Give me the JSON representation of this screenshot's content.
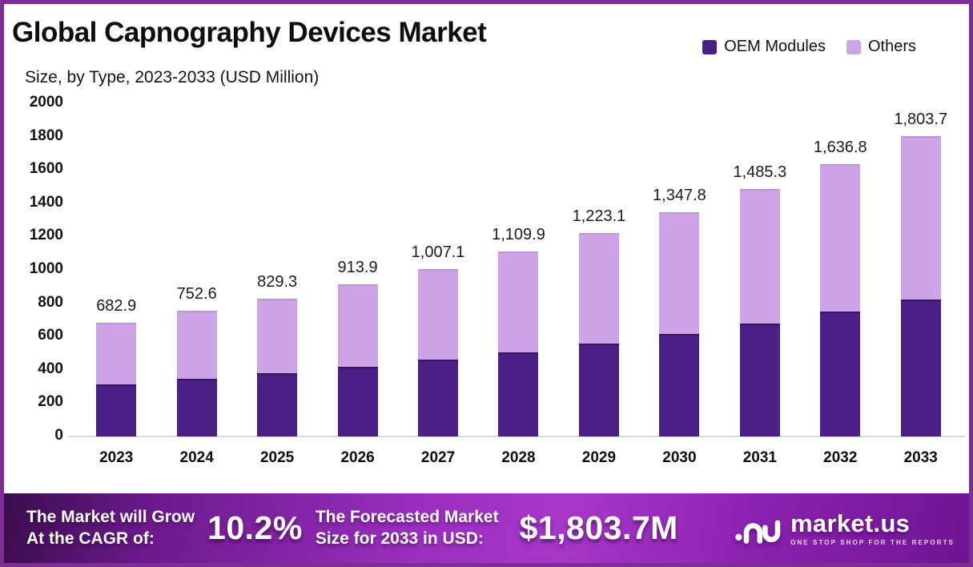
{
  "frame": {
    "border_color": "#7c2e94"
  },
  "header": {
    "title": "Global Capnography Devices Market",
    "subtitle": "Size, by Type, 2023-2033 (USD Million)"
  },
  "legend": {
    "items": [
      {
        "label": "OEM Modules",
        "color": "#4b2086"
      },
      {
        "label": "Others",
        "color": "#cda4e6"
      }
    ]
  },
  "chart_data": {
    "type": "bar",
    "stacked": true,
    "title": "Global Capnography Devices Market",
    "subtitle": "Size, by Type, 2023-2033 (USD Million)",
    "categories": [
      "2023",
      "2024",
      "2025",
      "2026",
      "2027",
      "2028",
      "2029",
      "2030",
      "2031",
      "2032",
      "2033"
    ],
    "series": [
      {
        "name": "OEM Modules",
        "color": "#4b2086",
        "values": [
          312.1,
          343.9,
          379.0,
          417.7,
          460.2,
          507.2,
          559.0,
          616.0,
          678.8,
          748.0,
          824.3
        ]
      },
      {
        "name": "Others",
        "color": "#cda4e6",
        "values": [
          370.8,
          408.7,
          450.3,
          496.2,
          546.9,
          602.7,
          664.1,
          731.8,
          806.5,
          888.8,
          979.4
        ]
      }
    ],
    "totals": [
      682.9,
      752.6,
      829.3,
      913.9,
      1007.1,
      1109.9,
      1223.1,
      1347.8,
      1485.3,
      1636.8,
      1803.7
    ],
    "total_labels": [
      "682.9",
      "752.6",
      "829.3",
      "913.9",
      "1,007.1",
      "1,109.9",
      "1,223.1",
      "1,347.8",
      "1,485.3",
      "1,636.8",
      "1,803.7"
    ],
    "ylabel": "",
    "xlabel": "",
    "ylim": [
      0,
      2000
    ],
    "yticks": [
      0,
      200,
      400,
      600,
      800,
      1000,
      1200,
      1400,
      1600,
      1800,
      2000
    ],
    "grid": false,
    "legend_position": "top-right"
  },
  "footer": {
    "cagr_label_line1": "The Market will Grow",
    "cagr_label_line2": "At the CAGR of:",
    "cagr_value": "10.2%",
    "forecast_label_line1": "The Forecasted Market",
    "forecast_label_line2": "Size for 2033 in USD:",
    "forecast_value": "$1,803.7M",
    "logo_wordmark": "market.us",
    "logo_tagline": "ONE STOP SHOP FOR THE REPORTS"
  }
}
